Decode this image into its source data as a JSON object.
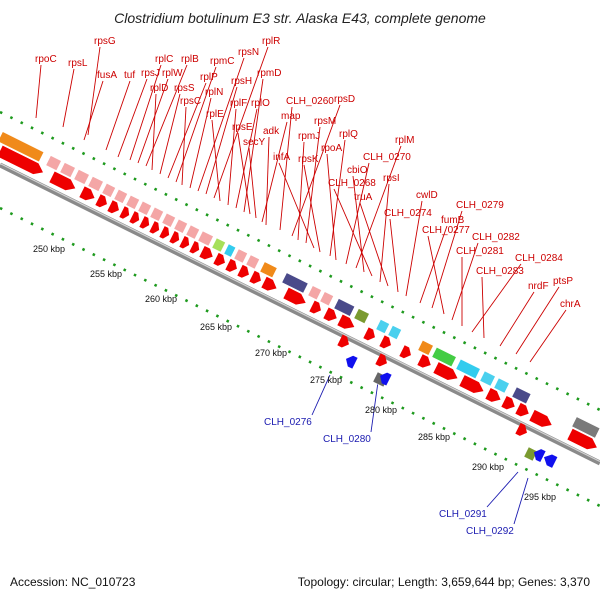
{
  "title": "Clostridium botulinum E3 str. Alaska E43, complete genome",
  "accession": "Accession: NC_010723",
  "topology": "Topology: circular; Length: 3,659,644 bp; Genes: 3,370",
  "colors": {
    "forward_gene": "#ee0000",
    "reverse_gene": "#1010ee",
    "upper_label": "#cc0000",
    "lower_label": "#1a1ab0",
    "backbone": "#8a8a8a",
    "tick": "#1e9a1e"
  },
  "ticks": [
    {
      "label": "250 kbp"
    },
    {
      "label": "255 kbp"
    },
    {
      "label": "260 kbp"
    },
    {
      "label": "265 kbp"
    },
    {
      "label": "270 kbp"
    },
    {
      "label": "275 kbp"
    },
    {
      "label": "280 kbp"
    },
    {
      "label": "285 kbp"
    },
    {
      "label": "290 kbp"
    },
    {
      "label": "295 kbp"
    }
  ],
  "upper_labels": [
    {
      "text": "rpoC"
    },
    {
      "text": "rpsL"
    },
    {
      "text": "rpsG"
    },
    {
      "text": "fusA"
    },
    {
      "text": "tuf"
    },
    {
      "text": "rpsJ"
    },
    {
      "text": "rplC"
    },
    {
      "text": "rplW"
    },
    {
      "text": "rplB"
    },
    {
      "text": "rplD"
    },
    {
      "text": "rpsS"
    },
    {
      "text": "rplP"
    },
    {
      "text": "rpmC"
    },
    {
      "text": "rpsC"
    },
    {
      "text": "rplN"
    },
    {
      "text": "rpsN"
    },
    {
      "text": "rpsH"
    },
    {
      "text": "rplR"
    },
    {
      "text": "rplE"
    },
    {
      "text": "rplF"
    },
    {
      "text": "rplO"
    },
    {
      "text": "rpmD"
    },
    {
      "text": "rpsE"
    },
    {
      "text": "secY"
    },
    {
      "text": "map"
    },
    {
      "text": "adk"
    },
    {
      "text": "CLH_0260"
    },
    {
      "text": "rpsD"
    },
    {
      "text": "rpmJ"
    },
    {
      "text": "rpsM"
    },
    {
      "text": "infA"
    },
    {
      "text": "rpsK"
    },
    {
      "text": "rplQ"
    },
    {
      "text": "rpoA"
    },
    {
      "text": "CLH_0270"
    },
    {
      "text": "rplM"
    },
    {
      "text": "cbiO"
    },
    {
      "text": "CLH_0268"
    },
    {
      "text": "rpsI"
    },
    {
      "text": "truA"
    },
    {
      "text": "CLH_0274"
    },
    {
      "text": "cwlD"
    },
    {
      "text": "fumB"
    },
    {
      "text": "CLH_0279"
    },
    {
      "text": "CLH_0277"
    },
    {
      "text": "CLH_0282"
    },
    {
      "text": "CLH_0281"
    },
    {
      "text": "CLH_0284"
    },
    {
      "text": "CLH_0283"
    },
    {
      "text": "nrdF"
    },
    {
      "text": "ptsP"
    },
    {
      "text": "chrA"
    }
  ],
  "lower_labels": [
    {
      "text": "CLH_0276"
    },
    {
      "text": "CLH_0280"
    },
    {
      "text": "CLH_0291"
    },
    {
      "text": "CLH_0292"
    }
  ]
}
